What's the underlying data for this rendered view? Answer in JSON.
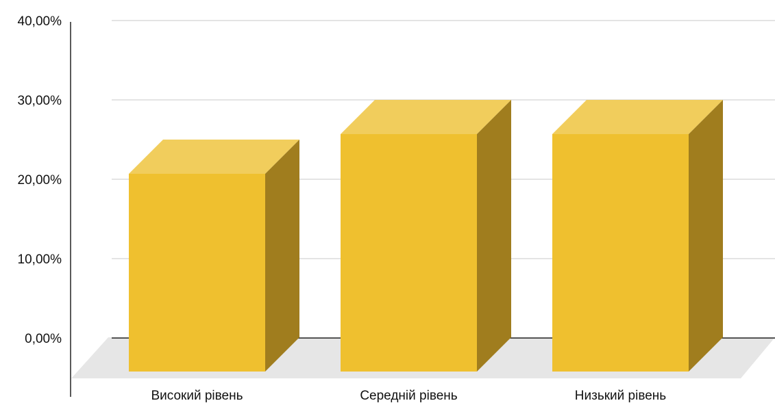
{
  "chart_data": {
    "type": "bar",
    "style": "3d",
    "categories": [
      "Високий рівень",
      "Середній рівень",
      "Низький рівень"
    ],
    "series": [
      {
        "values": [
          25,
          30,
          30
        ]
      }
    ],
    "ylim": [
      0,
      40
    ],
    "yticks": [
      0,
      10,
      20,
      30,
      40
    ],
    "ytick_labels": [
      "0,00%",
      "10,00%",
      "20,00%",
      "30,00%",
      "40,00%"
    ],
    "grid": true,
    "legend": "none",
    "title": "",
    "xlabel": "",
    "ylabel": ""
  },
  "colors": {
    "bar_front": "#efc02f",
    "bar_top": "#f1cd5c",
    "bar_side": "#a07d1e",
    "floor": "#e6e6e6",
    "grid": "#d4d4d4",
    "axis": "#222222",
    "text": "#111111"
  }
}
